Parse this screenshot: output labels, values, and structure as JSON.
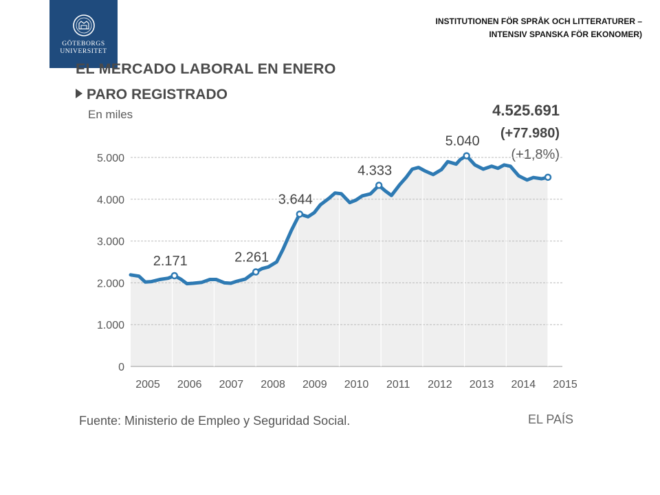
{
  "header": {
    "logo": {
      "line1": "GÖTEBORGS",
      "line2": "UNIVERSITET"
    },
    "department": "INSTITUTIONEN FÖR SPRÅK OCH LITTERATURER – INTENSIV SPANSKA FÖR EKONOMER)"
  },
  "chart_data": {
    "type": "area",
    "title": "EL MERCADO LABORAL EN ENERO",
    "subtitle": "PARO REGISTRADO",
    "ylabel": "En miles",
    "yticks": [
      0,
      1000,
      2000,
      3000,
      4000,
      5000
    ],
    "ytick_labels": [
      "0",
      "1.000",
      "2.000",
      "3.000",
      "4.000",
      "5.000"
    ],
    "ylim": [
      0,
      5300
    ],
    "xlim": [
      2005,
      2015
    ],
    "xtick_labels": [
      "2005",
      "2006",
      "2007",
      "2008",
      "2009",
      "2010",
      "2011",
      "2012",
      "2013",
      "2014",
      "2015"
    ],
    "grid": true,
    "series": [
      {
        "x": [
          2005.0,
          2005.2,
          2005.35,
          2005.5,
          2005.7,
          2005.9,
          2006.05,
          2006.2,
          2006.35,
          2006.5,
          2006.7,
          2006.9,
          2007.05,
          2007.25,
          2007.4,
          2007.55,
          2007.75,
          2007.9,
          2008.0,
          2008.15,
          2008.3,
          2008.5,
          2008.65,
          2008.85,
          2009.05,
          2009.25,
          2009.4,
          2009.55,
          2009.75,
          2009.9,
          2010.05,
          2010.25,
          2010.4,
          2010.55,
          2010.75,
          2010.95,
          2011.1,
          2011.25,
          2011.45,
          2011.6,
          2011.75,
          2011.9,
          2012.05,
          2012.25,
          2012.45,
          2012.6,
          2012.8,
          2012.9,
          2013.05,
          2013.25,
          2013.45,
          2013.65,
          2013.8,
          2013.95,
          2014.1,
          2014.3,
          2014.5,
          2014.65,
          2014.85,
          2015.0
        ],
        "y": [
          2190,
          2160,
          2020,
          2030,
          2080,
          2110,
          2171,
          2090,
          1980,
          1990,
          2010,
          2080,
          2080,
          2000,
          1990,
          2040,
          2090,
          2200,
          2261,
          2340,
          2380,
          2500,
          2800,
          3250,
          3644,
          3580,
          3680,
          3870,
          4020,
          4150,
          4130,
          3920,
          3980,
          4080,
          4130,
          4333,
          4200,
          4090,
          4350,
          4520,
          4720,
          4760,
          4680,
          4590,
          4710,
          4900,
          4840,
          4950,
          5040,
          4820,
          4720,
          4790,
          4740,
          4820,
          4790,
          4560,
          4460,
          4520,
          4490,
          4526
        ]
      }
    ],
    "annotations": [
      {
        "x": 2006.05,
        "y": 2171,
        "label": "2.171"
      },
      {
        "x": 2008.0,
        "y": 2261,
        "label": "2.261"
      },
      {
        "x": 2009.05,
        "y": 3644,
        "label": "3.644"
      },
      {
        "x": 2010.95,
        "y": 4333,
        "label": "4.333"
      },
      {
        "x": 2013.05,
        "y": 5040,
        "label": "5.040"
      },
      {
        "x": 2015.0,
        "y": 4526,
        "label": ""
      }
    ],
    "latest": {
      "value": "4.525.691",
      "change": "(+77.980)",
      "change_pct": "(+1,8%)"
    },
    "colors": {
      "line": "#2e7ab3",
      "area": "#efefef",
      "grid": "#bbbbbb",
      "text": "#555555"
    },
    "source": "Fuente: Ministerio de Empleo y Seguridad Social.",
    "brand": "EL PAÍS"
  }
}
